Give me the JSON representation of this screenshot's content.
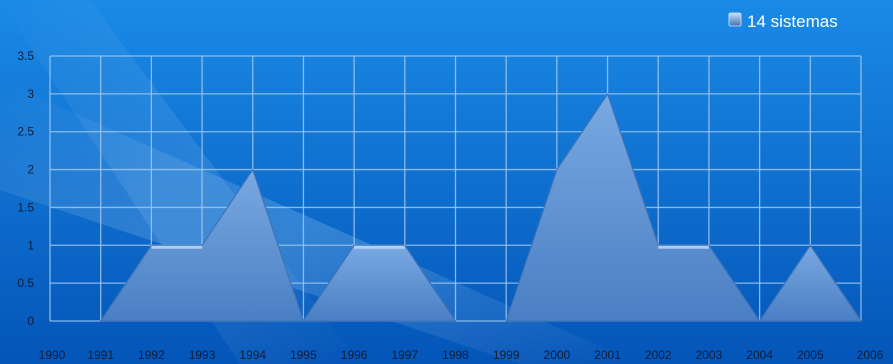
{
  "colors": {
    "background_top": "#1a8ae6",
    "background_bottom": "#0455b8",
    "grid": "#9ec7ee",
    "area_fill": "#5b8fd0",
    "area_stroke": "#3f73b6",
    "tick_text": "#0c1d3a",
    "legend_text": "#ffffff"
  },
  "chart_data": {
    "type": "area",
    "x": [
      "1990",
      "1991",
      "1992",
      "1993",
      "1994",
      "1995",
      "1996",
      "1997",
      "1998",
      "1999",
      "2000",
      "2001",
      "2002",
      "2003",
      "2004",
      "2005",
      "2006"
    ],
    "series": [
      {
        "name": "14 sistemas",
        "values": [
          null,
          0,
          1,
          1,
          2,
          0,
          1,
          1,
          0,
          0,
          2,
          3,
          1,
          1,
          0,
          1,
          0
        ]
      }
    ],
    "y_ticks": [
      "0",
      "0.5",
      "1",
      "1.5",
      "2",
      "2.5",
      "3",
      "3.5"
    ],
    "ylim": [
      0,
      3.5
    ],
    "grid": true,
    "legend_position": "top-right",
    "title": "",
    "xlabel": "",
    "ylabel": ""
  }
}
